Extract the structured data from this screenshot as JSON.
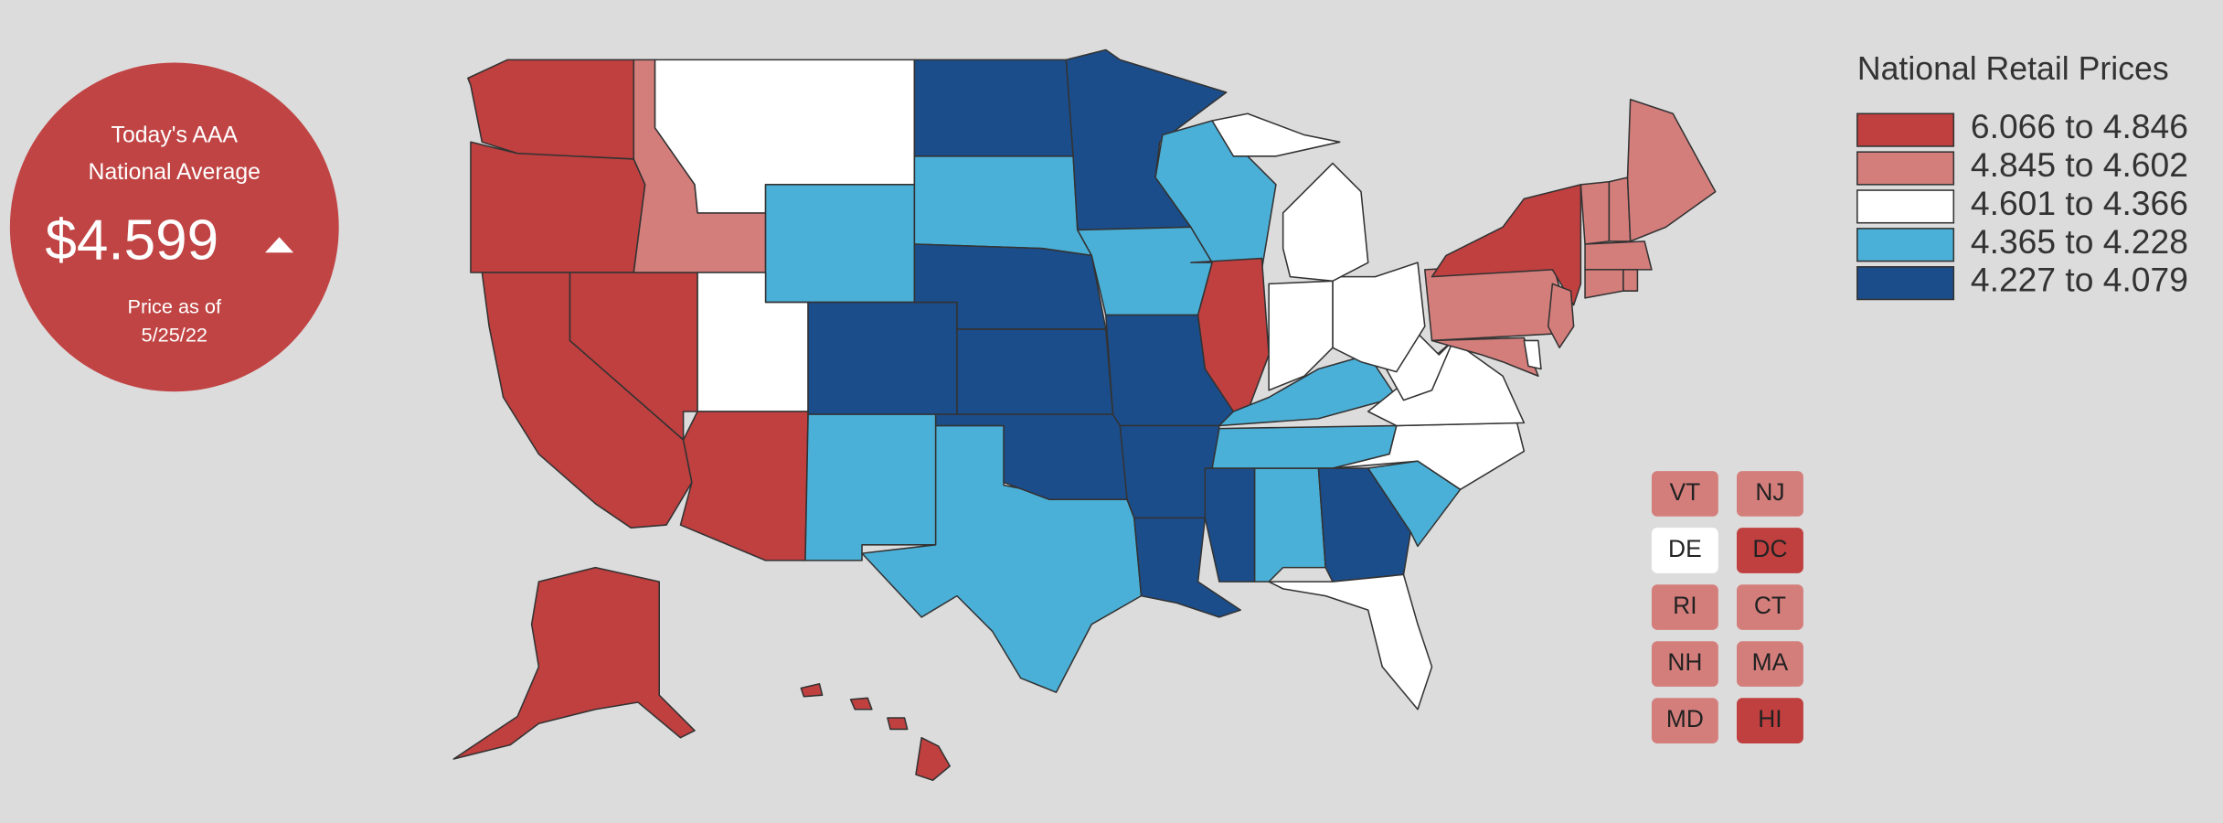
{
  "badge": {
    "line1": "Today's AAA",
    "line2": "National Average",
    "price": "$4.599",
    "date_label": "Price as of",
    "date": "5/25/22",
    "color": "#c14444"
  },
  "legend": {
    "title": "National Retail Prices",
    "entries": [
      {
        "label": "6.066 to 4.846",
        "color": "#c03f3f"
      },
      {
        "label": "4.845 to 4.602",
        "color": "#d47e7b"
      },
      {
        "label": "4.601 to 4.366",
        "color": "#ffffff"
      },
      {
        "label": "4.365 to 4.228",
        "color": "#4bb0d8"
      },
      {
        "label": "4.227 to 4.079",
        "color": "#1b4d8b"
      }
    ]
  },
  "map": {
    "regions": [
      0,
      0,
      0,
      0,
      1,
      2,
      3,
      2,
      0,
      4,
      3,
      4,
      3,
      4,
      4,
      3,
      4,
      4,
      3,
      4,
      4,
      4,
      3,
      0,
      4,
      3,
      2,
      3,
      3,
      4,
      3,
      2,
      2,
      2,
      2,
      2,
      2,
      2,
      1,
      0,
      1,
      1,
      2,
      1,
      1,
      1,
      1,
      1,
      1,
      0,
      0,
      0,
      0,
      0
    ]
  },
  "small_states": [
    {
      "label": "VT",
      "tier": 1
    },
    {
      "label": "NJ",
      "tier": 1
    },
    {
      "label": "DE",
      "tier": 2
    },
    {
      "label": "DC",
      "tier": 0
    },
    {
      "label": "RI",
      "tier": 1
    },
    {
      "label": "CT",
      "tier": 1
    },
    {
      "label": "NH",
      "tier": 1
    },
    {
      "label": "MA",
      "tier": 1
    },
    {
      "label": "MD",
      "tier": 1
    },
    {
      "label": "HI",
      "tier": 0
    }
  ]
}
